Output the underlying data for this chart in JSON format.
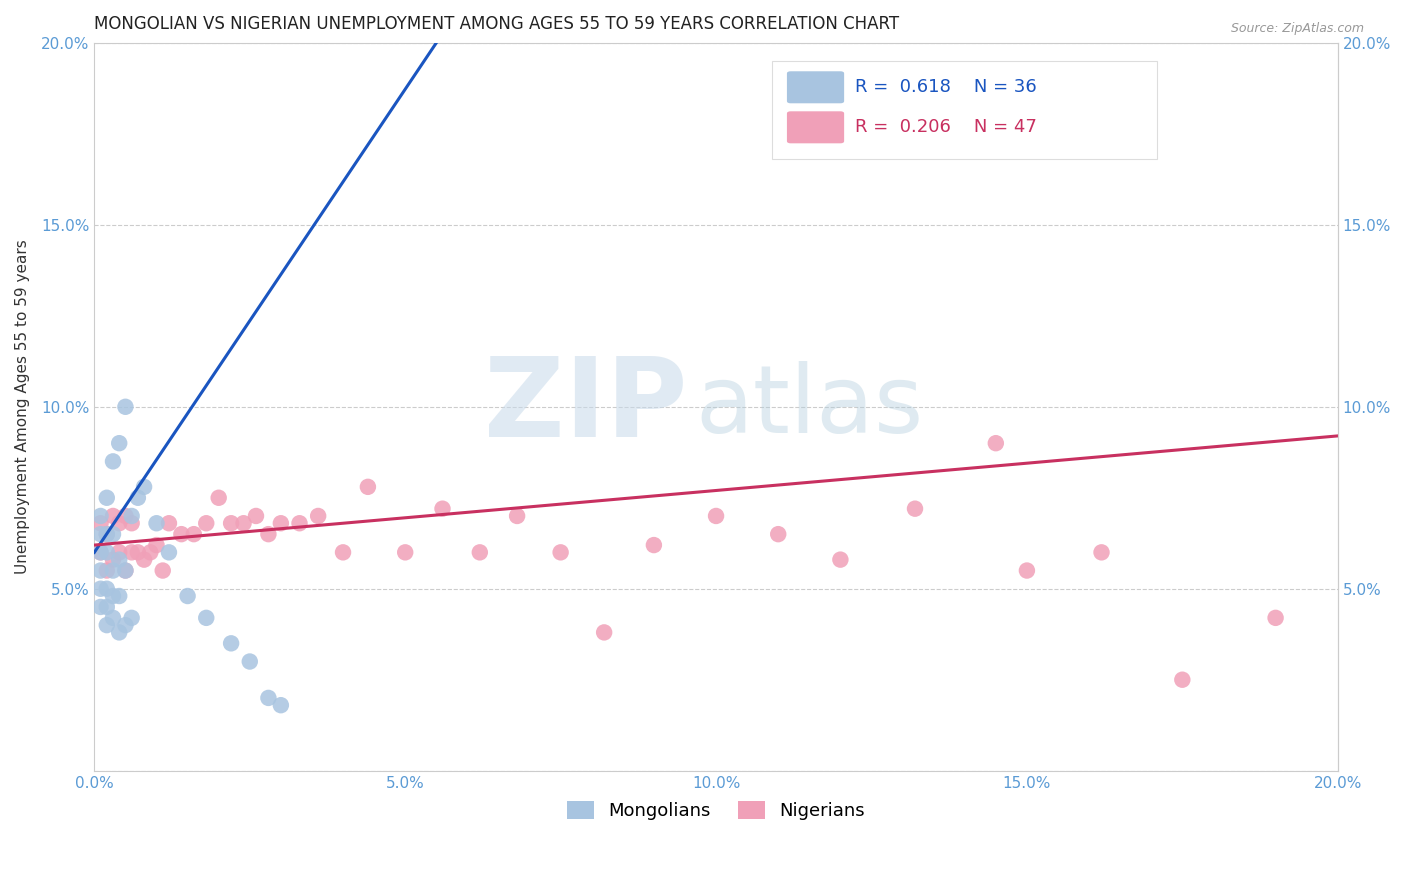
{
  "title": "MONGOLIAN VS NIGERIAN UNEMPLOYMENT AMONG AGES 55 TO 59 YEARS CORRELATION CHART",
  "source": "Source: ZipAtlas.com",
  "ylabel": "Unemployment Among Ages 55 to 59 years",
  "xlim_min": 0.0,
  "xlim_max": 0.2,
  "ylim_min": 0.0,
  "ylim_max": 0.2,
  "xtick_vals": [
    0.0,
    0.05,
    0.1,
    0.15,
    0.2
  ],
  "ytick_vals": [
    0.0,
    0.05,
    0.1,
    0.15,
    0.2
  ],
  "xtick_labels": [
    "0.0%",
    "5.0%",
    "10.0%",
    "15.0%",
    "20.0%"
  ],
  "ytick_labels": [
    "",
    "5.0%",
    "10.0%",
    "15.0%",
    "20.0%"
  ],
  "mongo_R": "0.618",
  "mongo_N": "36",
  "nig_R": "0.206",
  "nig_N": "47",
  "mongo_dot_color": "#a8c4e0",
  "nig_dot_color": "#f0a0b8",
  "mongo_line_color": "#1a55c0",
  "nig_line_color": "#c83060",
  "bg_color": "#ffffff",
  "grid_color": "#cccccc",
  "tick_color": "#5b9bd5",
  "title_color": "#222222",
  "ylabel_color": "#333333",
  "legend_label_mongo": "Mongolians",
  "legend_label_nig": "Nigerians",
  "mongo_x": [
    0.001,
    0.001,
    0.001,
    0.001,
    0.001,
    0.001,
    0.002,
    0.002,
    0.002,
    0.002,
    0.002,
    0.002,
    0.003,
    0.003,
    0.003,
    0.003,
    0.003,
    0.004,
    0.004,
    0.004,
    0.004,
    0.005,
    0.005,
    0.005,
    0.006,
    0.006,
    0.007,
    0.008,
    0.01,
    0.012,
    0.015,
    0.018,
    0.022,
    0.025,
    0.028,
    0.03
  ],
  "mongo_y": [
    0.045,
    0.05,
    0.055,
    0.06,
    0.065,
    0.07,
    0.04,
    0.045,
    0.05,
    0.06,
    0.065,
    0.075,
    0.042,
    0.048,
    0.055,
    0.065,
    0.085,
    0.038,
    0.048,
    0.058,
    0.09,
    0.04,
    0.055,
    0.1,
    0.042,
    0.07,
    0.075,
    0.078,
    0.068,
    0.06,
    0.048,
    0.042,
    0.035,
    0.03,
    0.02,
    0.018
  ],
  "nig_x": [
    0.001,
    0.001,
    0.002,
    0.002,
    0.003,
    0.003,
    0.004,
    0.004,
    0.005,
    0.005,
    0.006,
    0.006,
    0.007,
    0.008,
    0.009,
    0.01,
    0.011,
    0.012,
    0.014,
    0.016,
    0.018,
    0.02,
    0.022,
    0.024,
    0.026,
    0.028,
    0.03,
    0.033,
    0.036,
    0.04,
    0.044,
    0.05,
    0.056,
    0.062,
    0.068,
    0.075,
    0.082,
    0.09,
    0.1,
    0.11,
    0.12,
    0.132,
    0.145,
    0.15,
    0.162,
    0.175,
    0.19
  ],
  "nig_y": [
    0.06,
    0.068,
    0.055,
    0.065,
    0.058,
    0.07,
    0.06,
    0.068,
    0.055,
    0.07,
    0.06,
    0.068,
    0.06,
    0.058,
    0.06,
    0.062,
    0.055,
    0.068,
    0.065,
    0.065,
    0.068,
    0.075,
    0.068,
    0.068,
    0.07,
    0.065,
    0.068,
    0.068,
    0.07,
    0.06,
    0.078,
    0.06,
    0.072,
    0.06,
    0.07,
    0.06,
    0.038,
    0.062,
    0.07,
    0.065,
    0.058,
    0.072,
    0.09,
    0.055,
    0.06,
    0.025,
    0.042
  ]
}
